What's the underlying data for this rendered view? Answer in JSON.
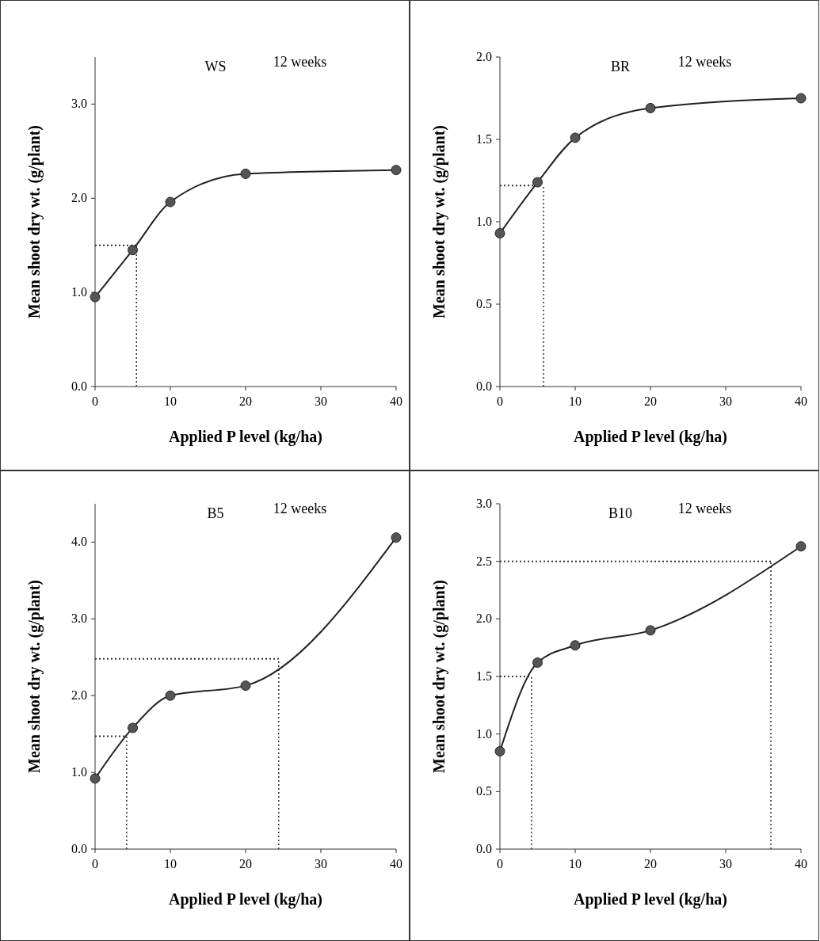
{
  "chart_data": [
    {
      "type": "line",
      "title": "WS",
      "subtitle": "12 weeks",
      "xlabel": "Applied P level (kg/ha)",
      "ylabel": "Mean shoot dry wt. (g/plant)",
      "x": [
        0,
        5,
        10,
        20,
        40
      ],
      "series": [
        {
          "color": "#222222",
          "values": [
            0.95,
            1.45,
            1.96,
            2.26,
            2.3
          ]
        }
      ],
      "xlim": [
        0,
        40
      ],
      "xticks": [
        0,
        10,
        20,
        30,
        40
      ],
      "ylim": [
        0,
        3.5
      ],
      "yticks": [
        {
          "value": 0,
          "label": "0.0"
        },
        {
          "value": 1,
          "label": "1.0"
        },
        {
          "value": 2,
          "label": "2.0"
        },
        {
          "value": 3,
          "label": "3.0"
        }
      ],
      "marker": "circle",
      "line_style": "solid",
      "ref_lines": [
        {
          "axis": "y",
          "value": 1.5,
          "line_style": "dotted"
        },
        {
          "axis": "x",
          "value": 5.5,
          "line_style": "dotted"
        }
      ]
    },
    {
      "type": "line",
      "title": "BR",
      "subtitle": "12 weeks",
      "xlabel": "Applied P level (kg/ha)",
      "ylabel": "Mean shoot dry wt. (g/plant)",
      "x": [
        0,
        5,
        10,
        20,
        40
      ],
      "series": [
        {
          "color": "#222222",
          "values": [
            0.93,
            1.24,
            1.51,
            1.69,
            1.75
          ]
        }
      ],
      "xlim": [
        0,
        40
      ],
      "xticks": [
        0,
        10,
        20,
        30,
        40
      ],
      "ylim": [
        0,
        2
      ],
      "yticks": [
        {
          "value": 0,
          "label": "0.0"
        },
        {
          "value": 0.5,
          "label": "0.5"
        },
        {
          "value": 1,
          "label": "1.0"
        },
        {
          "value": 1.5,
          "label": "1.5"
        },
        {
          "value": 2,
          "label": "2.0"
        }
      ],
      "marker": "circle",
      "line_style": "solid",
      "ref_lines": [
        {
          "axis": "y",
          "value": 1.22,
          "line_style": "dotted"
        },
        {
          "axis": "x",
          "value": 5.8,
          "line_style": "dotted"
        }
      ]
    },
    {
      "type": "line",
      "title": "B5",
      "subtitle": "12 weeks",
      "xlabel": "Applied P level (kg/ha)",
      "ylabel": "Mean shoot dry wt. (g/plant)",
      "x": [
        0,
        5,
        10,
        20,
        40
      ],
      "series": [
        {
          "color": "#222222",
          "values": [
            0.92,
            1.58,
            2.0,
            2.13,
            4.06
          ]
        }
      ],
      "xlim": [
        0,
        40
      ],
      "xticks": [
        0,
        10,
        20,
        30,
        40
      ],
      "ylim": [
        0,
        4.5
      ],
      "yticks": [
        {
          "value": 0,
          "label": "0.0"
        },
        {
          "value": 1,
          "label": "1.0"
        },
        {
          "value": 2,
          "label": "2.0"
        },
        {
          "value": 3,
          "label": "3.0"
        },
        {
          "value": 4,
          "label": "4.0"
        }
      ],
      "marker": "circle",
      "line_style": "solid",
      "ref_lines": [
        {
          "axis": "y",
          "value": 1.47,
          "line_style": "dotted"
        },
        {
          "axis": "x",
          "value": 4.2,
          "line_style": "dotted"
        },
        {
          "axis": "y",
          "value": 2.48,
          "line_style": "dotted"
        },
        {
          "axis": "x",
          "value": 24.4,
          "line_style": "dotted"
        }
      ]
    },
    {
      "type": "line",
      "title": "B10",
      "subtitle": "12 weeks",
      "xlabel": "Applied P level (kg/ha)",
      "ylabel": "Mean shoot dry wt. (g/plant)",
      "x": [
        0,
        5,
        10,
        20,
        40
      ],
      "series": [
        {
          "color": "#222222",
          "values": [
            0.85,
            1.62,
            1.77,
            1.9,
            2.63
          ]
        }
      ],
      "xlim": [
        0,
        40
      ],
      "xticks": [
        0,
        10,
        20,
        30,
        40
      ],
      "ylim": [
        0,
        3
      ],
      "yticks": [
        {
          "value": 0,
          "label": "0.0"
        },
        {
          "value": 0.5,
          "label": "0.5"
        },
        {
          "value": 1,
          "label": "1.0"
        },
        {
          "value": 1.5,
          "label": "1.5"
        },
        {
          "value": 2,
          "label": "2.0"
        },
        {
          "value": 2.5,
          "label": "2.5"
        },
        {
          "value": 3,
          "label": "3.0"
        }
      ],
      "marker": "circle",
      "line_style": "solid",
      "ref_lines": [
        {
          "axis": "y",
          "value": 1.5,
          "line_style": "dotted"
        },
        {
          "axis": "x",
          "value": 4.2,
          "line_style": "dotted"
        },
        {
          "axis": "y",
          "value": 2.5,
          "line_style": "dotted"
        },
        {
          "axis": "x",
          "value": 36,
          "line_style": "dotted"
        }
      ]
    }
  ]
}
